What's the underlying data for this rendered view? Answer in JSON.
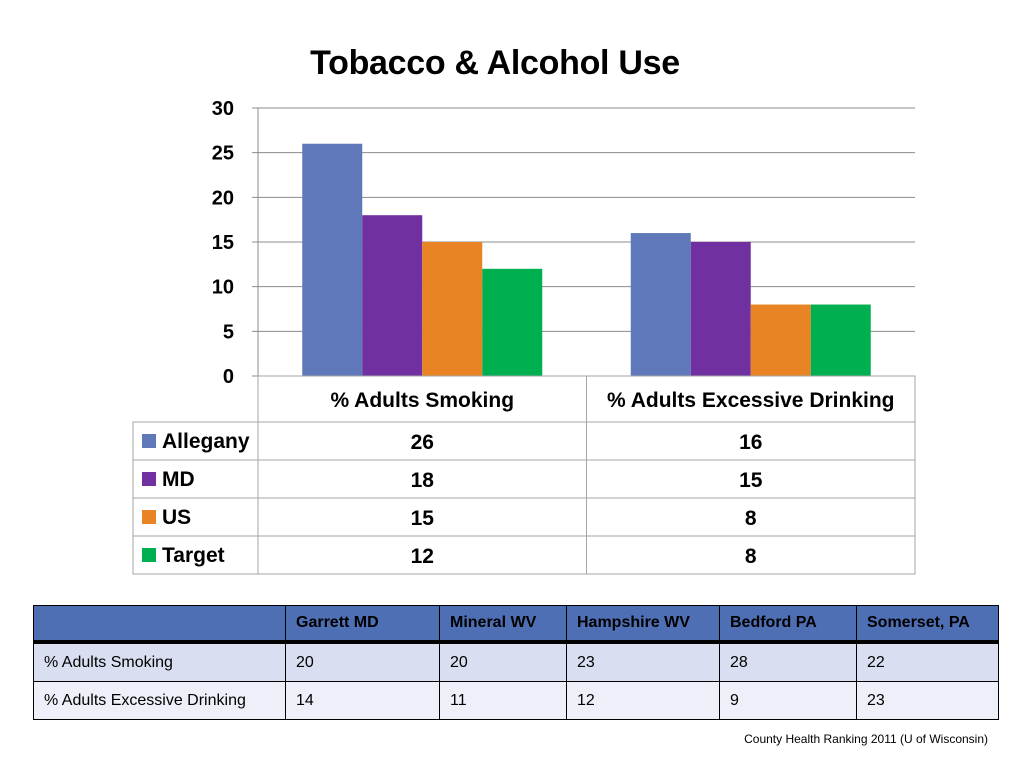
{
  "title": "Tobacco & Alcohol Use",
  "chart_data": {
    "type": "bar",
    "title": "Tobacco & Alcohol Use",
    "categories": [
      "% Adults Smoking",
      "% Adults Excessive Drinking"
    ],
    "series": [
      {
        "name": "Allegany",
        "color": "#5f78b9",
        "values": [
          26,
          16
        ]
      },
      {
        "name": "MD",
        "color": "#7030a0",
        "values": [
          18,
          15
        ]
      },
      {
        "name": "US",
        "color": "#e98424",
        "values": [
          15,
          8
        ]
      },
      {
        "name": "Target",
        "color": "#00b050",
        "values": [
          12,
          8
        ]
      }
    ],
    "ylim": [
      0,
      30
    ],
    "yticks": [
      0,
      5,
      10,
      15,
      20,
      25,
      30
    ],
    "grid": true,
    "legend": "data-table-left",
    "xlabel": "",
    "ylabel": ""
  },
  "comparison_table": {
    "headers": [
      "",
      "Garrett MD",
      "Mineral WV",
      "Hampshire WV",
      "Bedford PA",
      "Somerset, PA"
    ],
    "rows": [
      [
        "% Adults Smoking",
        "20",
        "20",
        "23",
        "28",
        "22"
      ],
      [
        "% Adults Excessive Drinking",
        "14",
        "11",
        "12",
        "9",
        "23"
      ]
    ]
  },
  "source": "County Health Ranking 2011 (U of Wisconsin)"
}
